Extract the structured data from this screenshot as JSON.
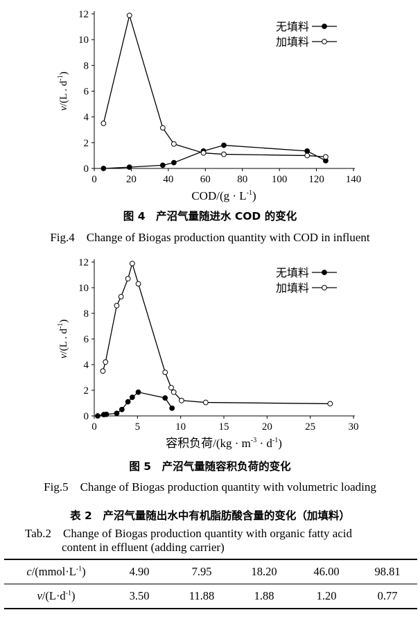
{
  "chart_data": [
    {
      "type": "line",
      "id": "fig4",
      "ylabel_prefix": "v",
      "ylabel_rest": "/(L . d",
      "ylabel_sup": "-1",
      "ylabel_end": ")",
      "xlabel_main": "COD/(g · L",
      "xlabel_sup": "-1",
      "xlabel_end": ")",
      "xlim": [
        0,
        140
      ],
      "ylim": [
        0,
        12
      ],
      "xticks": [
        0,
        20,
        40,
        60,
        80,
        100,
        120,
        140
      ],
      "yticks": [
        0,
        2,
        4,
        6,
        8,
        10,
        12
      ],
      "legend_position": "top-right",
      "series": [
        {
          "name": "无填料",
          "marker": "filled",
          "x": [
            5,
            19,
            37,
            43,
            59,
            70,
            115,
            125
          ],
          "y": [
            0.0,
            0.1,
            0.25,
            0.45,
            1.35,
            1.8,
            1.35,
            0.6
          ]
        },
        {
          "name": "加填料",
          "marker": "open",
          "x": [
            5,
            19,
            37,
            43,
            59,
            70,
            115,
            125
          ],
          "y": [
            3.5,
            11.88,
            3.15,
            1.9,
            1.2,
            1.1,
            1.0,
            0.9
          ]
        }
      ]
    },
    {
      "type": "line",
      "id": "fig5",
      "ylabel_prefix": "v",
      "ylabel_rest": "/(L . d",
      "ylabel_sup": "-1",
      "ylabel_end": ")",
      "xlabel_main": "容积负荷/(kg · m",
      "xlabel_sup": "-3",
      "xlabel_mid": " · d",
      "xlabel_sup2": "-1",
      "xlabel_end": ")",
      "xlim": [
        0,
        30
      ],
      "ylim": [
        0,
        12
      ],
      "xticks": [
        0,
        5,
        10,
        15,
        20,
        25,
        30
      ],
      "yticks": [
        0,
        2,
        4,
        6,
        8,
        10,
        12
      ],
      "legend_position": "top-right",
      "series": [
        {
          "name": "无填料",
          "marker": "filled",
          "x": [
            0.4,
            1.1,
            1.4,
            2.6,
            3.2,
            3.9,
            4.4,
            5.1,
            8.2,
            9.0
          ],
          "y": [
            0.0,
            0.1,
            0.12,
            0.2,
            0.5,
            1.1,
            1.45,
            1.85,
            1.4,
            0.6
          ]
        },
        {
          "name": "加填料",
          "marker": "open",
          "x": [
            1.0,
            1.3,
            2.6,
            3.1,
            3.9,
            4.4,
            5.1,
            8.2,
            8.9,
            9.2,
            10.1,
            12.9,
            27.3
          ],
          "y": [
            3.5,
            4.2,
            8.6,
            9.3,
            10.7,
            11.88,
            10.3,
            3.4,
            2.2,
            1.85,
            1.2,
            1.05,
            0.95
          ]
        }
      ]
    }
  ],
  "captions": {
    "fig4_cn": "图 4　产沼气量随进水 COD 的变化",
    "fig4_en": "Fig.4　Change of Biogas production quantity with COD in influent",
    "fig5_cn": "图 5　产沼气量随容积负荷的变化",
    "fig5_en": "Fig.5　Change of Biogas production quantity with volumetric loading"
  },
  "table": {
    "title_cn": "表 2　产沼气量随出水中有机脂肪酸含量的变化（加填料）",
    "title_en_line1": "Tab.2　Change of Biogas production quantity with organic fatty acid",
    "title_en_line2": "content in effluent (adding carrier)",
    "rows": [
      {
        "var": "c",
        "unit": "/(mmol·L",
        "sup": "-1",
        "close": ")",
        "values": [
          "4.90",
          "7.95",
          "18.20",
          "46.00",
          "98.81"
        ]
      },
      {
        "var": "v",
        "unit": "/(L·d",
        "sup": "-1",
        "close": ")",
        "values": [
          "3.50",
          "11.88",
          "1.88",
          "1.20",
          "0.77"
        ]
      }
    ]
  }
}
